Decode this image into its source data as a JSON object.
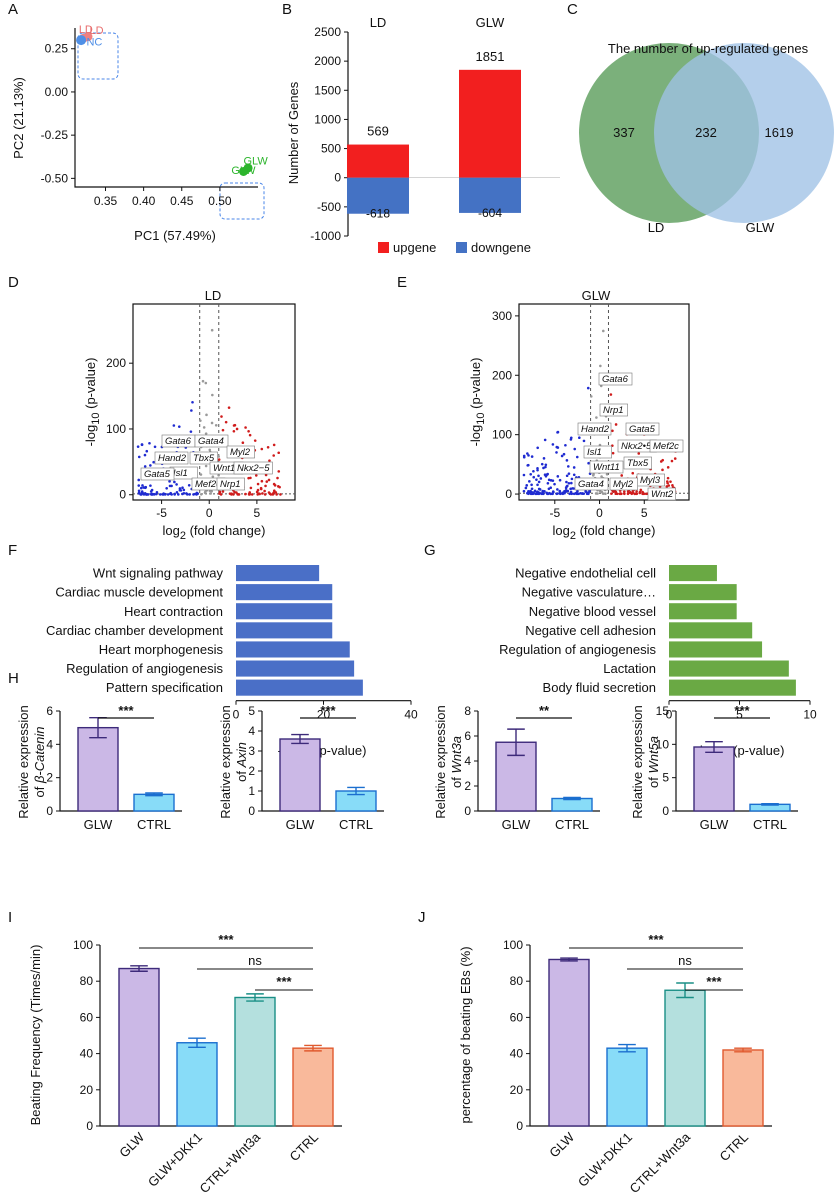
{
  "panels": {
    "A": "A",
    "B": "B",
    "C": "C",
    "D": "D",
    "E": "E",
    "F": "F",
    "G": "G",
    "H": "H",
    "I": "I",
    "J": "J"
  },
  "colors": {
    "red": "#f21f1f",
    "blue": "#4472c4",
    "green": "#5e9f5e",
    "lightblue": "#9fc2e6",
    "purple": "#cbb8e6",
    "cyan": "#88dcf8",
    "teal": "#b4e0de",
    "salmon": "#f9b99b",
    "barblue": "#4a6fc7",
    "bargreen": "#6aa944"
  },
  "chart_data": [
    {
      "id": "A",
      "type": "scatter",
      "xlabel": "PC1 (57.49%)",
      "ylabel": "PC2 (21.13%)",
      "xticks": [
        "0.35",
        "0.40",
        "0.45",
        "0.50"
      ],
      "yticks": [
        "0.25",
        "0.00",
        "-0.25",
        "-0.50"
      ],
      "xlim": [
        0.31,
        0.55
      ],
      "ylim": [
        -0.55,
        0.37
      ],
      "points": [
        {
          "label": "LD",
          "x": 0.327,
          "y": 0.32,
          "color": "#f08080"
        },
        {
          "label": "LD",
          "x": 0.321,
          "y": 0.31,
          "color": "#f08080"
        },
        {
          "label": "NC",
          "x": 0.318,
          "y": 0.3,
          "color": "#4f8fe6"
        },
        {
          "label": "GLW",
          "x": 0.537,
          "y": -0.44,
          "color": "#2cb52c"
        },
        {
          "label": "GLW",
          "x": 0.531,
          "y": -0.46,
          "color": "#2cb52c"
        }
      ],
      "point_labels": {
        "LD": "LD",
        "NC": "NC",
        "GLW": "GLW"
      }
    },
    {
      "id": "B",
      "type": "bar",
      "categories": [
        "LD",
        "GLW"
      ],
      "ylabel": "Number of Genes",
      "ylim": [
        -1000,
        2500
      ],
      "yticks": [
        "2500",
        "2000",
        "1500",
        "1000",
        "500",
        "0",
        "-500",
        "-1000"
      ],
      "series": [
        {
          "name": "upgene",
          "values": [
            569,
            1851
          ]
        },
        {
          "name": "downgene",
          "values": [
            -618,
            -604
          ]
        }
      ],
      "up_labels": [
        "569",
        "1851"
      ],
      "down_labels": [
        "-618",
        "-604"
      ]
    },
    {
      "id": "C",
      "type": "venn",
      "title": "The number of up-regulated genes",
      "sets": [
        "LD",
        "GLW"
      ],
      "only_left": "337",
      "both": "232",
      "only_right": "1619"
    },
    {
      "id": "D",
      "type": "scatter",
      "title": "LD",
      "xlabel": "log2 (fold change)",
      "ylabel": "-log10 (p-value)",
      "xticks": [
        "-5",
        "0",
        "5"
      ],
      "yticks": [
        "0",
        "100",
        "200"
      ],
      "xlim": [
        -8,
        9
      ],
      "ylim": [
        -8,
        290
      ],
      "genes": [
        "Gata6",
        "Gata4",
        "Myl2",
        "Hand2",
        "Tbx5",
        "Isl1",
        "Wnt11",
        "Nkx2−5",
        "Gata5",
        "Mef2c",
        "Nrp1"
      ]
    },
    {
      "id": "E",
      "type": "scatter",
      "title": "GLW",
      "xlabel": "log2 (fold change)",
      "ylabel": "-log10 (p-value)",
      "xticks": [
        "-5",
        "0",
        "5"
      ],
      "yticks": [
        "0",
        "100",
        "200",
        "300"
      ],
      "xlim": [
        -9,
        10
      ],
      "ylim": [
        -10,
        320
      ],
      "genes": [
        "Gata6",
        "Nrp1",
        "Hand2",
        "Gata5",
        "Isl1",
        "Nkx2•5",
        "Mef2c",
        "Wnt11",
        "Tbx5",
        "Myl3",
        "Gata4",
        "Myl2",
        "Wnt2"
      ]
    },
    {
      "id": "F",
      "type": "bar",
      "orientation": "horizontal",
      "xlabel": "-log10 (p-value)",
      "xlim": [
        0,
        40
      ],
      "xticks": [
        "0",
        "20",
        "40"
      ],
      "categories": [
        "Wnt signaling pathway",
        "Cardiac muscle development",
        "Heart contraction",
        "Cardiac chamber development",
        "Heart morphogenesis",
        "Regulation of angiogenesis",
        "Pattern specification"
      ],
      "values": [
        19,
        22,
        22,
        22,
        26,
        27,
        29
      ]
    },
    {
      "id": "G",
      "type": "bar",
      "orientation": "horizontal",
      "xlabel": "-log10 (p-value)",
      "xlim": [
        0,
        10
      ],
      "xticks": [
        "0",
        "5",
        "10"
      ],
      "categories": [
        "Negative endothelial cell",
        "Negative vasculature…",
        "Negative  blood vessel",
        "Negative  cell adhesion",
        "Regulation of angiogenesis",
        "Lactation",
        "Body fluid secretion"
      ],
      "values": [
        3.4,
        4.8,
        4.8,
        5.9,
        6.6,
        8.5,
        9.0
      ]
    },
    {
      "id": "H1",
      "type": "bar",
      "ylabel_line1": "Relative expression",
      "ylabel_line2": "of β-Catenin",
      "categories": [
        "GLW",
        "CTRL"
      ],
      "values": [
        5.0,
        1.0
      ],
      "errors": [
        0.6,
        0.08
      ],
      "ylim": [
        0,
        6
      ],
      "yticks": [
        "0",
        "2",
        "4",
        "6"
      ],
      "sig": "***"
    },
    {
      "id": "H2",
      "type": "bar",
      "ylabel_line1": "Relative expression",
      "ylabel_line2": "of Axin",
      "categories": [
        "GLW",
        "CTRL"
      ],
      "values": [
        3.6,
        1.0
      ],
      "errors": [
        0.22,
        0.18
      ],
      "ylim": [
        0,
        5
      ],
      "yticks": [
        "0",
        "1",
        "2",
        "3",
        "4",
        "5"
      ],
      "sig": "***"
    },
    {
      "id": "H3",
      "type": "bar",
      "ylabel_line1": "Relative expression",
      "ylabel_line2": "of Wnt3a",
      "categories": [
        "GLW",
        "CTRL"
      ],
      "values": [
        5.5,
        1.0
      ],
      "errors": [
        1.05,
        0.08
      ],
      "ylim": [
        0,
        8
      ],
      "yticks": [
        "0",
        "2",
        "4",
        "6",
        "8"
      ],
      "sig": "**"
    },
    {
      "id": "H4",
      "type": "bar",
      "ylabel_line1": "Relative expression",
      "ylabel_line2": "of Wnt5a",
      "categories": [
        "GLW",
        "CTRL"
      ],
      "values": [
        9.6,
        1.0
      ],
      "errors": [
        0.8,
        0.1
      ],
      "ylim": [
        0,
        15
      ],
      "yticks": [
        "0",
        "5",
        "10",
        "15"
      ],
      "sig": "***"
    },
    {
      "id": "I",
      "type": "bar",
      "ylabel": "Beating Frequency (Times/min)",
      "categories": [
        "GLW",
        "GLW+DKK1",
        "CTRL+Wnt3a",
        "CTRL"
      ],
      "values": [
        87,
        46,
        71,
        43
      ],
      "errors": [
        1.5,
        2.5,
        2,
        1.5
      ],
      "ylim": [
        0,
        100
      ],
      "yticks": [
        "0",
        "20",
        "40",
        "60",
        "80",
        "100"
      ],
      "sig": [
        {
          "text": "***",
          "from": 0,
          "to": 3
        },
        {
          "text": "ns",
          "from": 1,
          "to": 3
        },
        {
          "text": "***",
          "from": 2,
          "to": 3
        }
      ]
    },
    {
      "id": "J",
      "type": "bar",
      "ylabel": "percentage of beating EBs (%)",
      "categories": [
        "GLW",
        "GLW+DKK1",
        "CTRL+Wnt3a",
        "CTRL"
      ],
      "values": [
        92,
        43,
        75,
        42
      ],
      "errors": [
        0.8,
        2,
        4,
        1
      ],
      "ylim": [
        0,
        100
      ],
      "yticks": [
        "0",
        "20",
        "40",
        "60",
        "80",
        "100"
      ],
      "sig": [
        {
          "text": "***",
          "from": 0,
          "to": 3
        },
        {
          "text": "ns",
          "from": 1,
          "to": 3
        },
        {
          "text": "***",
          "from": 2,
          "to": 3
        }
      ]
    }
  ],
  "legend": {
    "up": "upgene",
    "down": "downgene"
  }
}
